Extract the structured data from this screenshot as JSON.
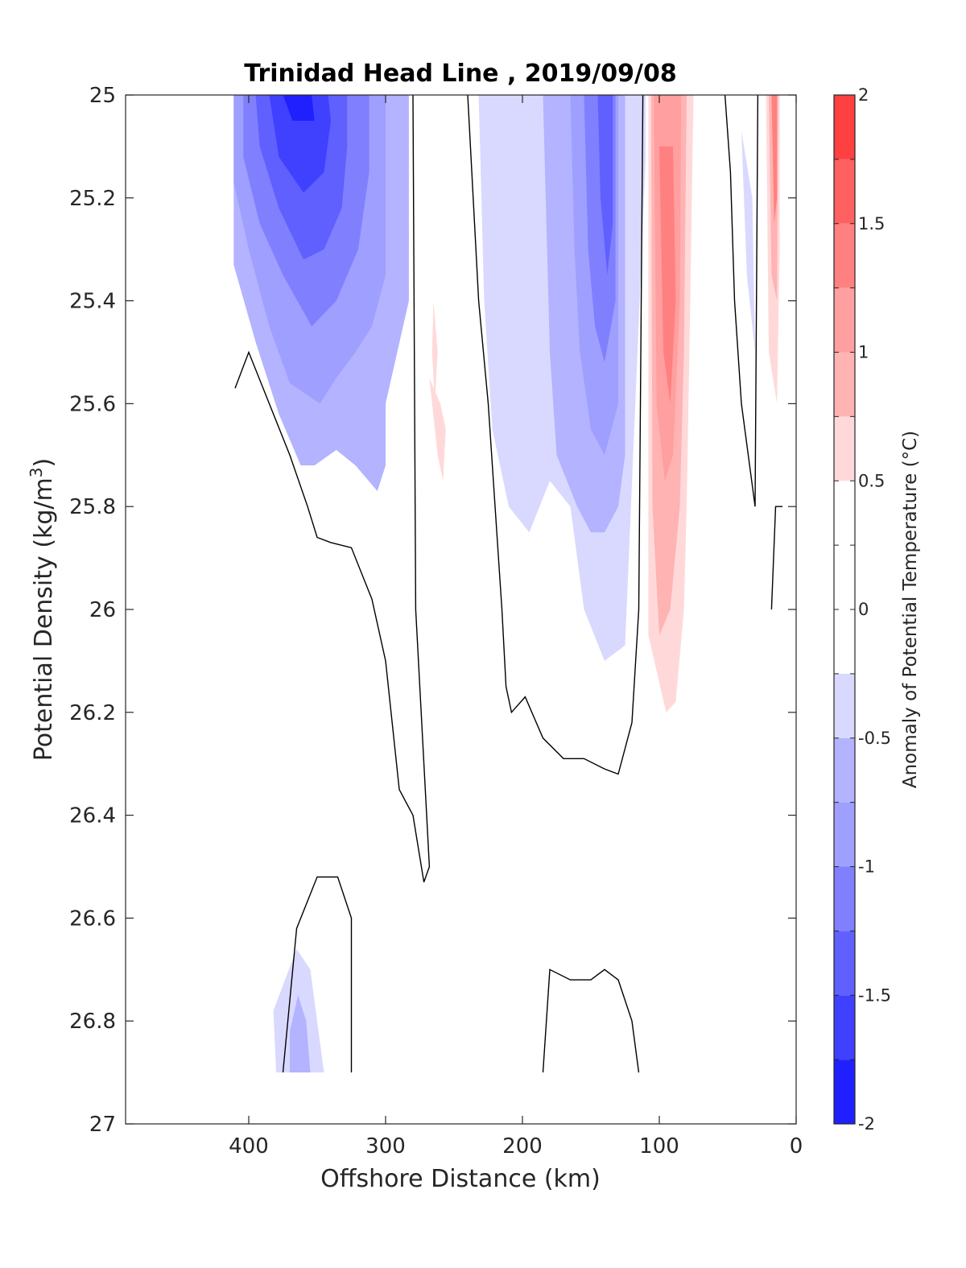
{
  "chart_data": {
    "type": "contour",
    "title": "Trinidad Head Line , 2019/09/08",
    "xlabel": "Offshore Distance (km)",
    "ylabel_main": "Potential Density (kg/m",
    "ylabel_sup": "3",
    "ylabel_end": ")",
    "xlim": [
      490,
      0
    ],
    "ylim": [
      25,
      27
    ],
    "x_reversed": true,
    "y_reversed": true,
    "xticks": [
      400,
      300,
      200,
      100,
      0
    ],
    "xtick_labels": [
      "400",
      "300",
      "200",
      "100",
      "0"
    ],
    "yticks": [
      25,
      25.2,
      25.4,
      25.6,
      25.8,
      26,
      26.2,
      26.4,
      26.6,
      26.8,
      27
    ],
    "ytick_labels": [
      "25",
      "25.2",
      "25.4",
      "25.6",
      "25.8",
      "26",
      "26.2",
      "26.4",
      "26.6",
      "26.8",
      "27"
    ],
    "colorbar": {
      "label": "Anomaly of Potential Temperature (°C)",
      "range": [
        -2,
        2
      ],
      "step": 0.25,
      "ticks": [
        2,
        1.5,
        1,
        0.5,
        0,
        -0.5,
        -1,
        -1.5,
        -2
      ],
      "tick_labels": [
        "2",
        "1.5",
        "1",
        "0.5",
        "0",
        "-0.5",
        "-1",
        "-1.5",
        "-2"
      ],
      "colors": [
        "#0000ff",
        "#2020ff",
        "#4040ff",
        "#6060ff",
        "#8080ff",
        "#9f9fff",
        "#b3b3ff",
        "#d9d9ff",
        "#ffffff",
        "#ffffff",
        "#ffd9d9",
        "#ffb3b3",
        "#ff9f9f",
        "#ff8080",
        "#ff6060",
        "#ff4040",
        "#ff2020",
        "#ff0000"
      ]
    },
    "regions": [
      {
        "level": -0.5,
        "points": [
          [
            411,
            25.0
          ],
          [
            411,
            25.33
          ],
          [
            395,
            25.48
          ],
          [
            378,
            25.62
          ],
          [
            362,
            25.72
          ],
          [
            352,
            25.72
          ],
          [
            336,
            25.69
          ],
          [
            322,
            25.72
          ],
          [
            306,
            25.77
          ],
          [
            300,
            25.72
          ],
          [
            300,
            25.6
          ],
          [
            283,
            25.4
          ],
          [
            283,
            25.0
          ]
        ]
      },
      {
        "level": -0.75,
        "points": [
          [
            411,
            25.0
          ],
          [
            411,
            25.17
          ],
          [
            400,
            25.3
          ],
          [
            385,
            25.45
          ],
          [
            370,
            25.56
          ],
          [
            348,
            25.6
          ],
          [
            336,
            25.55
          ],
          [
            322,
            25.5
          ],
          [
            310,
            25.45
          ],
          [
            300,
            25.35
          ],
          [
            300,
            25.0
          ]
        ]
      },
      {
        "level": -1.0,
        "points": [
          [
            404,
            25.0
          ],
          [
            404,
            25.12
          ],
          [
            392,
            25.25
          ],
          [
            375,
            25.35
          ],
          [
            354,
            25.45
          ],
          [
            336,
            25.4
          ],
          [
            320,
            25.3
          ],
          [
            312,
            25.15
          ],
          [
            312,
            25.0
          ]
        ]
      },
      {
        "level": -1.25,
        "points": [
          [
            395,
            25.0
          ],
          [
            392,
            25.1
          ],
          [
            378,
            25.22
          ],
          [
            360,
            25.32
          ],
          [
            345,
            25.3
          ],
          [
            332,
            25.22
          ],
          [
            328,
            25.1
          ],
          [
            328,
            25.0
          ]
        ]
      },
      {
        "level": -1.5,
        "points": [
          [
            385,
            25.0
          ],
          [
            378,
            25.12
          ],
          [
            360,
            25.19
          ],
          [
            345,
            25.15
          ],
          [
            340,
            25.05
          ],
          [
            342,
            25.0
          ]
        ]
      },
      {
        "level": -1.75,
        "points": [
          [
            375,
            25.0
          ],
          [
            368,
            25.05
          ],
          [
            352,
            25.05
          ],
          [
            354,
            25.0
          ]
        ]
      },
      {
        "level": 0.25,
        "points": [
          [
            262,
            25.0
          ],
          [
            240,
            25.0
          ],
          [
            245,
            25.25
          ],
          [
            246,
            25.48
          ],
          [
            250,
            25.6
          ],
          [
            258,
            25.72
          ],
          [
            258,
            25.9
          ],
          [
            262,
            26.0
          ],
          [
            270,
            25.85
          ],
          [
            274,
            25.6
          ],
          [
            276,
            25.4
          ],
          [
            268,
            25.2
          ]
        ]
      },
      {
        "level": 0.5,
        "points": [
          [
            268,
            25.55
          ],
          [
            264,
            25.65
          ],
          [
            262,
            25.7
          ],
          [
            258,
            25.75
          ],
          [
            256,
            25.65
          ],
          [
            260,
            25.6
          ]
        ]
      },
      {
        "level": 0.5,
        "points": [
          [
            265,
            25.4
          ],
          [
            262,
            25.5
          ],
          [
            264,
            25.6
          ],
          [
            266,
            25.5
          ]
        ]
      },
      {
        "level": -0.25,
        "points": [
          [
            232,
            25.0
          ],
          [
            228,
            25.4
          ],
          [
            222,
            25.65
          ],
          [
            210,
            25.8
          ],
          [
            195,
            25.85
          ],
          [
            180,
            25.75
          ],
          [
            165,
            25.8
          ],
          [
            155,
            26.0
          ],
          [
            140,
            26.1
          ],
          [
            125,
            26.07
          ],
          [
            108,
            25.0
          ]
        ]
      },
      {
        "level": -0.5,
        "points": [
          [
            185,
            25.0
          ],
          [
            180,
            25.5
          ],
          [
            175,
            25.7
          ],
          [
            160,
            25.8
          ],
          [
            150,
            25.85
          ],
          [
            140,
            25.85
          ],
          [
            130,
            25.8
          ],
          [
            125,
            25.7
          ],
          [
            125,
            25.0
          ]
        ]
      },
      {
        "level": -0.75,
        "points": [
          [
            165,
            25.0
          ],
          [
            162,
            25.3
          ],
          [
            158,
            25.5
          ],
          [
            150,
            25.65
          ],
          [
            140,
            25.7
          ],
          [
            130,
            25.6
          ],
          [
            130,
            25.0
          ]
        ]
      },
      {
        "level": -1.0,
        "points": [
          [
            155,
            25.0
          ],
          [
            152,
            25.3
          ],
          [
            147,
            25.45
          ],
          [
            140,
            25.52
          ],
          [
            132,
            25.4
          ],
          [
            132,
            25.0
          ]
        ]
      },
      {
        "level": -1.25,
        "points": [
          [
            145,
            25.0
          ],
          [
            143,
            25.2
          ],
          [
            138,
            25.35
          ],
          [
            134,
            25.25
          ],
          [
            134,
            25.0
          ]
        ]
      },
      {
        "level": 0.25,
        "points": [
          [
            110,
            25.0
          ],
          [
            110,
            25.9
          ],
          [
            112,
            26.1
          ],
          [
            110,
            26.3
          ],
          [
            100,
            26.5
          ],
          [
            85,
            26.6
          ],
          [
            70,
            26.52
          ],
          [
            60,
            26.42
          ],
          [
            62,
            26.2
          ],
          [
            60,
            26.0
          ],
          [
            55,
            25.7
          ],
          [
            50,
            25.4
          ],
          [
            50,
            25.0
          ]
        ]
      },
      {
        "level": 0.5,
        "points": [
          [
            108,
            25.0
          ],
          [
            108,
            26.05
          ],
          [
            95,
            26.2
          ],
          [
            88,
            26.18
          ],
          [
            82,
            26.0
          ],
          [
            80,
            25.8
          ],
          [
            78,
            25.5
          ],
          [
            75,
            25.0
          ]
        ]
      },
      {
        "level": 0.75,
        "points": [
          [
            106,
            25.0
          ],
          [
            105,
            25.8
          ],
          [
            100,
            26.05
          ],
          [
            92,
            26.0
          ],
          [
            85,
            25.8
          ],
          [
            82,
            25.5
          ],
          [
            80,
            25.0
          ]
        ]
      },
      {
        "level": 1.0,
        "points": [
          [
            104,
            25.0
          ],
          [
            102,
            25.6
          ],
          [
            96,
            25.75
          ],
          [
            90,
            25.7
          ],
          [
            85,
            25.4
          ],
          [
            84,
            25.0
          ]
        ]
      },
      {
        "level": 1.25,
        "points": [
          [
            100,
            25.1
          ],
          [
            97,
            25.5
          ],
          [
            92,
            25.6
          ],
          [
            88,
            25.4
          ],
          [
            90,
            25.1
          ]
        ]
      },
      {
        "level": -0.25,
        "points": [
          [
            40,
            25.07
          ],
          [
            36,
            25.35
          ],
          [
            30,
            25.5
          ],
          [
            32,
            25.2
          ]
        ]
      },
      {
        "level": 0.25,
        "points": [
          [
            25,
            25.0
          ],
          [
            22,
            25.6
          ],
          [
            16,
            25.75
          ],
          [
            10,
            25.6
          ],
          [
            10,
            25.0
          ]
        ]
      },
      {
        "level": 0.5,
        "points": [
          [
            22,
            25.0
          ],
          [
            20,
            25.5
          ],
          [
            14,
            25.6
          ],
          [
            12,
            25.3
          ],
          [
            12,
            25.0
          ]
        ]
      },
      {
        "level": 0.75,
        "points": [
          [
            20,
            25.0
          ],
          [
            18,
            25.35
          ],
          [
            14,
            25.4
          ],
          [
            13,
            25.0
          ]
        ]
      },
      {
        "level": 1.25,
        "points": [
          [
            18,
            25.0
          ],
          [
            16,
            25.25
          ],
          [
            14,
            25.2
          ],
          [
            14,
            25.0
          ]
        ]
      },
      {
        "level": 0.25,
        "points": [
          [
            405,
            25.7
          ],
          [
            395,
            25.65
          ],
          [
            385,
            25.8
          ],
          [
            375,
            26.0
          ],
          [
            362,
            26.1
          ],
          [
            345,
            26.15
          ],
          [
            330,
            26.18
          ],
          [
            320,
            26.3
          ],
          [
            310,
            26.45
          ],
          [
            300,
            26.45
          ],
          [
            320,
            26.42
          ],
          [
            345,
            26.42
          ],
          [
            370,
            26.4
          ],
          [
            390,
            26.3
          ],
          [
            400,
            26.1
          ],
          [
            405,
            25.9
          ]
        ]
      },
      {
        "level": 0.25,
        "points": [
          [
            412,
            26.73
          ],
          [
            408,
            26.8
          ],
          [
            412,
            26.82
          ]
        ]
      },
      {
        "level": 0.25,
        "points": [
          [
            250,
            26.32
          ],
          [
            238,
            26.35
          ],
          [
            228,
            26.45
          ],
          [
            240,
            26.53
          ],
          [
            252,
            26.5
          ]
        ]
      },
      {
        "level": 0.25,
        "points": [
          [
            218,
            26.67
          ],
          [
            208,
            26.75
          ],
          [
            198,
            26.77
          ],
          [
            182,
            26.8
          ],
          [
            205,
            26.8
          ],
          [
            210,
            26.78
          ]
        ]
      },
      {
        "level": -0.25,
        "points": [
          [
            380,
            26.9
          ],
          [
            382,
            26.78
          ],
          [
            365,
            26.66
          ],
          [
            355,
            26.7
          ],
          [
            350,
            26.8
          ],
          [
            345,
            26.9
          ]
        ]
      },
      {
        "level": -0.5,
        "points": [
          [
            370,
            26.9
          ],
          [
            370,
            26.82
          ],
          [
            364,
            26.75
          ],
          [
            358,
            26.8
          ],
          [
            355,
            26.9
          ]
        ]
      }
    ],
    "zero_contours": [
      [
        [
          410,
          25.57
        ],
        [
          400,
          25.5
        ],
        [
          385,
          25.6
        ],
        [
          370,
          25.7
        ],
        [
          357,
          25.8
        ],
        [
          350,
          25.86
        ],
        [
          340,
          25.87
        ],
        [
          325,
          25.88
        ],
        [
          310,
          25.98
        ],
        [
          300,
          26.1
        ],
        [
          290,
          26.35
        ],
        [
          280,
          26.4
        ],
        [
          272,
          26.53
        ],
        [
          268,
          26.5
        ],
        [
          270,
          26.4
        ],
        [
          278,
          26.0
        ],
        [
          280,
          25.0
        ]
      ],
      [
        [
          240,
          25.0
        ],
        [
          232,
          25.4
        ],
        [
          225,
          25.6
        ],
        [
          220,
          25.8
        ],
        [
          215,
          26.0
        ],
        [
          212,
          26.15
        ],
        [
          208,
          26.2
        ],
        [
          198,
          26.17
        ],
        [
          185,
          26.25
        ],
        [
          170,
          26.29
        ],
        [
          155,
          26.29
        ],
        [
          140,
          26.31
        ],
        [
          130,
          26.32
        ],
        [
          120,
          26.22
        ],
        [
          115,
          26.0
        ],
        [
          112,
          25.0
        ]
      ],
      [
        [
          52,
          25.0
        ],
        [
          48,
          25.15
        ],
        [
          45,
          25.4
        ],
        [
          40,
          25.6
        ],
        [
          30,
          25.8
        ],
        [
          28,
          25.0
        ]
      ],
      [
        [
          18,
          26.0
        ],
        [
          15,
          25.8
        ],
        [
          10,
          25.8
        ]
      ],
      [
        [
          375,
          26.9
        ],
        [
          365,
          26.62
        ],
        [
          350,
          26.52
        ],
        [
          335,
          26.52
        ],
        [
          325,
          26.6
        ],
        [
          325,
          26.9
        ]
      ],
      [
        [
          185,
          26.9
        ],
        [
          180,
          26.7
        ],
        [
          165,
          26.72
        ],
        [
          150,
          26.72
        ],
        [
          140,
          26.7
        ],
        [
          130,
          26.72
        ],
        [
          120,
          26.8
        ],
        [
          115,
          26.9
        ]
      ]
    ]
  }
}
